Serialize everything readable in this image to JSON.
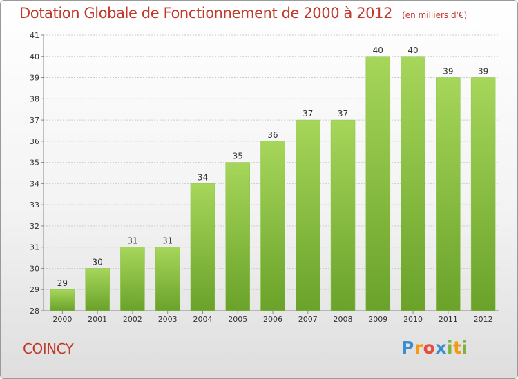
{
  "header": {
    "title": "Dotation Globale de Fonctionnement de 2000 à 2012",
    "unit": "(en milliers d'€)"
  },
  "footer": {
    "commune": "COINCY",
    "logo_text": "Proxiti"
  },
  "colors": {
    "title": "#c0392b",
    "bar_light": "#a6d65a",
    "bar_dark": "#6aa22a",
    "grid": "#cccccc"
  },
  "chart_data": {
    "type": "bar",
    "title": "Dotation Globale de Fonctionnement de 2000 à 2012",
    "subtitle": "(en milliers d'€)",
    "xlabel": "",
    "ylabel": "",
    "categories": [
      "2000",
      "2001",
      "2002",
      "2003",
      "2004",
      "2005",
      "2006",
      "2007",
      "2008",
      "2009",
      "2010",
      "2011",
      "2012"
    ],
    "values": [
      29,
      30,
      31,
      31,
      34,
      35,
      36,
      37,
      37,
      40,
      40,
      39,
      39
    ],
    "ylim": [
      28,
      41
    ],
    "yticks": [
      28,
      29,
      30,
      31,
      32,
      33,
      34,
      35,
      36,
      37,
      38,
      39,
      40,
      41
    ],
    "grid": true,
    "data_labels": true
  }
}
